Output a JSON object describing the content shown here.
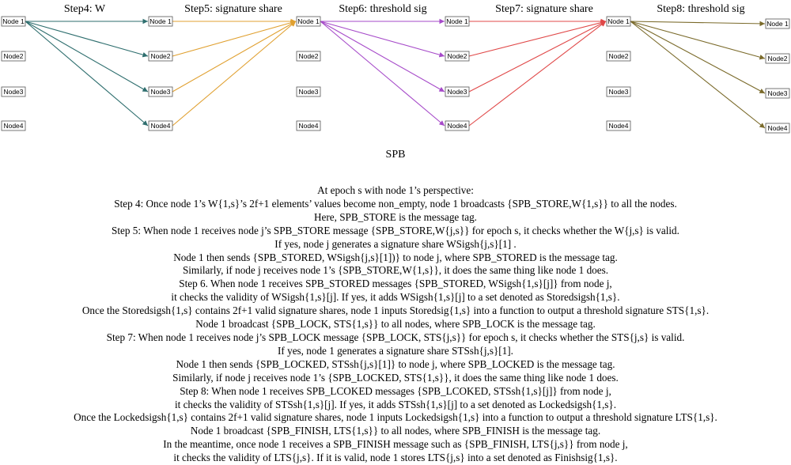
{
  "steps": [
    {
      "title": "Step4: W"
    },
    {
      "title": "Step5: signature share"
    },
    {
      "title": "Step6: threshold sig"
    },
    {
      "title": "Step7: signature share"
    },
    {
      "title": "Step8: threshold sig"
    }
  ],
  "node_labels": [
    "Node 1",
    "Node2",
    "Node3",
    "Node4"
  ],
  "edge_colors": {
    "step4": "#2e6e6e",
    "step5": "#e0a030",
    "step6": "#a64ac9",
    "step7": "#e04848",
    "step8": "#7a6a2a"
  },
  "caption": "SPB",
  "lines": [
    "At epoch s with node 1’s perspective:",
    "Step 4: Once node 1’s W{1,s}’s 2f+1 elements’ values become non_empty, node 1 broadcasts {SPB_STORE,W{1,s}} to all the nodes.",
    "Here, SPB_STORE is the message tag.",
    "Step 5: When node 1 receives node j’s SPB_STORE message {SPB_STORE,W{j,s}} for epoch s, it checks whether the W{j,s} is valid.",
    "If yes, node j generates a signature share WSigsh{j,s}[1] .",
    "Node 1 then sends {SPB_STORED, WSigsh{j,s}[1])} to node j, where SPB_STORED is the message tag.",
    "Similarly, if node j receives node 1’s {SPB_STORE,W{1,s}}, it does the same thing like node 1 does.",
    "Step 6. When node 1 receives SPB_STORED messages {SPB_STORED, WSigsh{1,s}[j]} from node j,",
    "it checks the validity of WSigsh{1,s}[j]. If yes, it adds WSigsh{1,s}[j] to a set denoted as Storedsigsh{1,s}.",
    "Once the Storedsigsh{1,s} contains 2f+1 valid signature shares, node 1 inputs Storedsig{1,s} into a function to output a threshold signature STS{1,s}.",
    "Node 1 broadcast {SPB_LOCK, STS{1,s}} to all nodes, where SPB_LOCK is the message tag.",
    "Step 7: When node 1 receives node j’s SPB_LOCK message {SPB_LOCK, STS{j,s}} for epoch s, it checks whether the STS{j,s} is valid.",
    "If yes, node 1 generates a signature share STSsh{j,s}[1].",
    "Node 1 then sends {SPB_LOCKED, STSsh{j,s}[1]} to node j, where SPB_LOCKED is the message tag.",
    "Similarly, if node j receives node 1’s {SPB_LOCKED, STS{1,s}}, it does the same thing like node 1 does.",
    "Step 8:  When node 1 receives SPB_LCOKED messages {SPB_LCOKED, STSsh{1,s}[j]} from node j,",
    "it checks the validity of STSsh{1,s}[j]. If yes, it adds STSsh{1,s}[j] to a set denoted as Lockedsigsh{1,s}.",
    "Once the Lockedsigsh{1,s} contains 2f+1 valid signature shares, node 1 inputs Lockedsigsh{1,s} into a function to output a threshold signature LTS{1,s}.",
    "Node 1 broadcast {SPB_FINISH, LTS{1,s}} to all nodes, where SPB_FINISH is the message tag.",
    "In the meantime, once node 1 receives a SPB_FINISH message such as {SPB_FINISH, LTS{j,s}} from node j,",
    "it checks the validity of LTS{j,s}. If it is valid, node 1 stores LTS{j,s} into a set denoted as Finishsig{1,s}."
  ]
}
